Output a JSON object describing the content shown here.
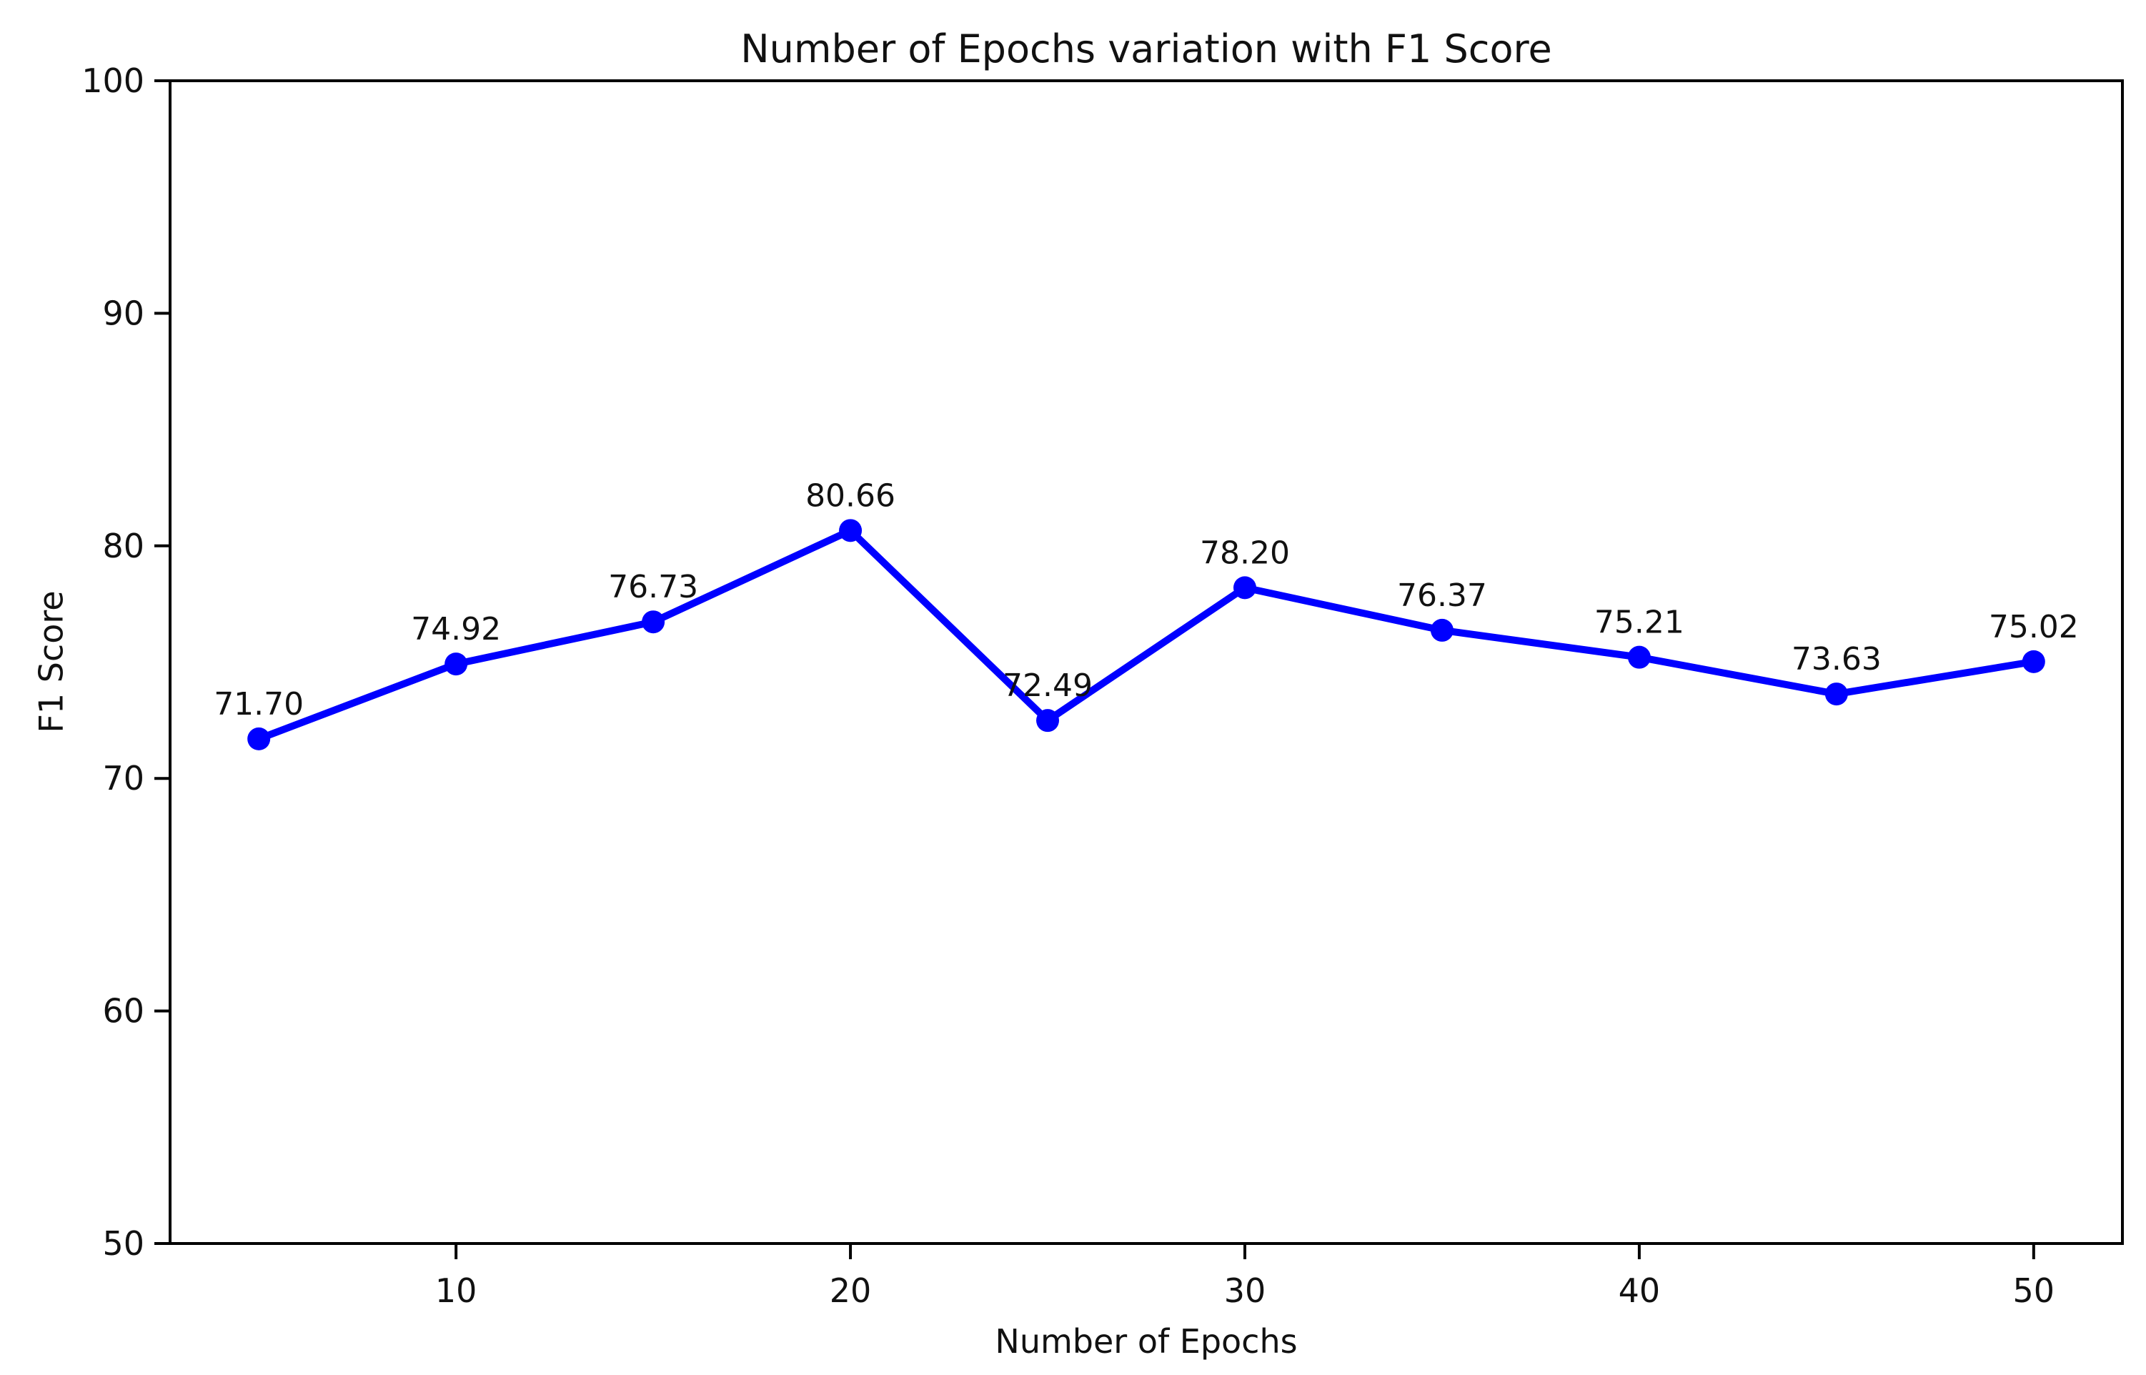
{
  "figure": {
    "title": "Number of Epochs variation with F1 Score",
    "x_axis_label": "Number of Epochs",
    "y_axis_label": "F1 Score"
  },
  "chart_data": {
    "type": "line",
    "title": "Number of Epochs variation with F1 Score",
    "xlabel": "Number of Epochs",
    "ylabel": "F1 Score",
    "x": [
      5,
      10,
      15,
      20,
      25,
      30,
      35,
      40,
      45,
      50
    ],
    "y": [
      71.7,
      74.92,
      76.73,
      80.66,
      72.49,
      78.2,
      76.37,
      75.21,
      73.63,
      75.02
    ],
    "point_labels": [
      "71.70",
      "74.92",
      "76.73",
      "80.66",
      "72.49",
      "78.20",
      "76.37",
      "75.21",
      "73.63",
      "75.02"
    ],
    "x_ticks": [
      10,
      20,
      30,
      40,
      50
    ],
    "y_ticks": [
      50,
      60,
      70,
      80,
      90,
      100
    ],
    "xlim": [
      2.75,
      52.25
    ],
    "ylim": [
      50,
      100
    ],
    "grid": false,
    "legend": "none",
    "line_color": "#0000ff",
    "marker": "circle",
    "axis_color": "#000000",
    "label_color": "#111111"
  }
}
